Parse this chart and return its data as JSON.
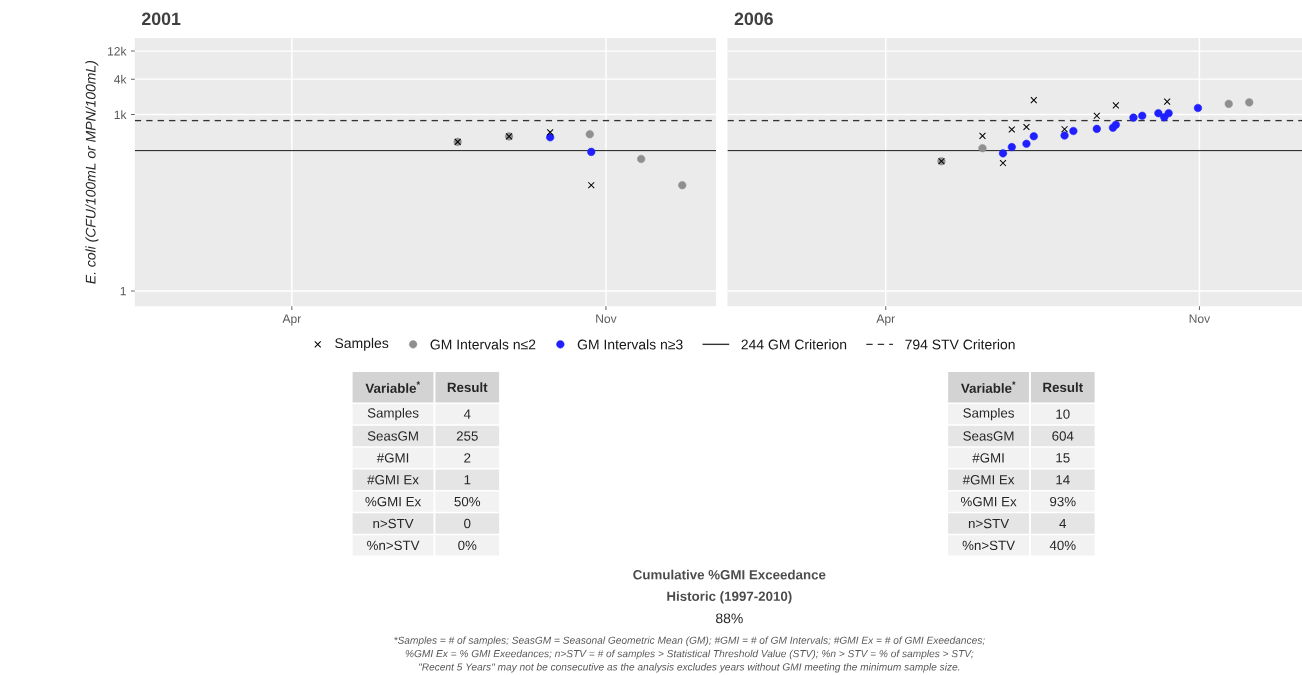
{
  "chart_data": [
    {
      "type": "scatter",
      "title": "2001",
      "ylabel": "E. coli (CFU/100mL or MPN/100mL)",
      "log": "y",
      "grid": true,
      "legend": "bottom",
      "xlim": [
        "2000-12-15",
        "2002-01-15"
      ],
      "ylim": [
        0.55,
        20000
      ],
      "xticks": [
        {
          "value": "2001-04-01",
          "label": "Apr"
        },
        {
          "value": "2001-11-01",
          "label": "Nov"
        }
      ],
      "yticks": [
        1,
        {
          "value": 1000,
          "label": "1k"
        },
        {
          "value": 4000,
          "label": "4k"
        },
        {
          "value": 12000,
          "label": "12k"
        }
      ],
      "ref_lines": [
        {
          "axis": "y",
          "value": 244,
          "label": "244 GM Criterion",
          "color": "#333333",
          "line_style": "solid"
        },
        {
          "axis": "y",
          "value": 794,
          "label": "794 STV Criterion",
          "color": "#333333",
          "line_style": "dashed"
        }
      ],
      "series": [
        {
          "name": "Samples",
          "color": "#000000",
          "marker": "cross",
          "x": [
            "2001-07-23",
            "2001-08-27",
            "2001-09-24",
            "2001-10-22"
          ],
          "values": [
            343,
            425,
            501,
            63
          ]
        },
        {
          "name": "GM Intervals n≤2",
          "color": "#8f8f8f",
          "marker": "circle",
          "x": [
            "2001-07-23",
            "2001-08-27",
            "2001-10-21",
            "2001-11-25",
            "2001-12-23"
          ],
          "values": [
            343,
            425,
            462,
            176,
            63
          ]
        },
        {
          "name": "GM Intervals n≥3",
          "color": "#1f1fff",
          "marker": "circle",
          "x": [
            "2001-09-24",
            "2001-10-22"
          ],
          "values": [
            411,
            232
          ]
        }
      ]
    },
    {
      "type": "scatter",
      "title": "2006",
      "log": "y",
      "grid": true,
      "tick_labels": "x",
      "xlim": [
        "2005-12-14",
        "2007-01-10"
      ],
      "ylim": [
        0.55,
        20000
      ],
      "xticks": [
        {
          "value": "2006-04-01",
          "label": "Apr"
        },
        {
          "value": "2006-11-01",
          "label": "Nov"
        }
      ],
      "yticks": [
        {
          "value": 1,
          "label": null
        },
        {
          "value": 1000,
          "label": null
        },
        {
          "value": 4000,
          "label": null
        },
        {
          "value": 12000,
          "label": null
        }
      ],
      "ref_lines": [
        {
          "axis": "y",
          "value": 244,
          "color": "#333333",
          "line_style": "solid"
        },
        {
          "axis": "y",
          "value": 794,
          "color": "#333333",
          "line_style": "dashed"
        }
      ],
      "series": [
        {
          "color": "#000000",
          "marker": "cross",
          "x": [
            "2006-05-09",
            "2006-06-06",
            "2006-06-20",
            "2006-06-26",
            "2006-07-06",
            "2006-07-11",
            "2006-08-01",
            "2006-08-23",
            "2006-09-05",
            "2006-10-10"
          ],
          "values": [
            161,
            434,
            150,
            557,
            615,
            1757,
            564,
            953,
            1433,
            1660
          ]
        },
        {
          "color": "#8f8f8f",
          "marker": "circle",
          "x": [
            "2006-05-09",
            "2006-06-06",
            "2006-11-21",
            "2006-12-05"
          ],
          "values": [
            161,
            268,
            1518,
            1611
          ]
        },
        {
          "color": "#1f1fff",
          "marker": "circle",
          "x": [
            "2006-06-20",
            "2006-06-26",
            "2006-07-06",
            "2006-07-11",
            "2006-08-01",
            "2006-08-07",
            "2006-08-23",
            "2006-09-03",
            "2006-09-05",
            "2006-09-17",
            "2006-09-23",
            "2006-10-04",
            "2006-10-08",
            "2006-10-11",
            "2006-10-31"
          ],
          "values": [
            219,
            280,
            319,
            427,
            440,
            525,
            571,
            597,
            670,
            887,
            953,
            1055,
            900,
            1055,
            1294
          ]
        }
      ]
    },
    {
      "type": "other",
      "annotations": [
        "Variable$^{*}$",
        "Result",
        "Samples",
        "4",
        "SeasGM",
        "255",
        "#GMI",
        "2",
        "#GMI Ex",
        "1",
        "%GMI Ex",
        "50%",
        "n>STV",
        "0",
        "%n>STV",
        "0%"
      ]
    },
    {
      "type": "other",
      "annotations": [
        "Variable$^{*}$",
        "Result",
        "Samples",
        "10",
        "SeasGM",
        "604",
        "#GMI",
        "15",
        "#GMI Ex",
        "14",
        "%GMI Ex",
        "93%",
        "n>STV",
        "4",
        "%n>STV",
        "40%"
      ]
    },
    {
      "type": "other",
      "title": "Cumulative %GMI Exceedance",
      "subtitle": "Historic (1997-2010)",
      "annotations": [
        "88%",
        "*Samples = # of samples; SeasGM = Seasonal Geometric Mean (GM); #GMI = # of GM Intervals; #GMI Ex = # of GMI Exeedances;",
        "%GMI Ex = % GMI Exeedances; n>STV = # of samples > Statistical Threshold Value (STV); %n > STV = % of samples > STV;",
        "\"Recent 5 Years\" may not be consecutive as the analysis excludes years without GMI meeting the minimum sample size."
      ]
    }
  ]
}
